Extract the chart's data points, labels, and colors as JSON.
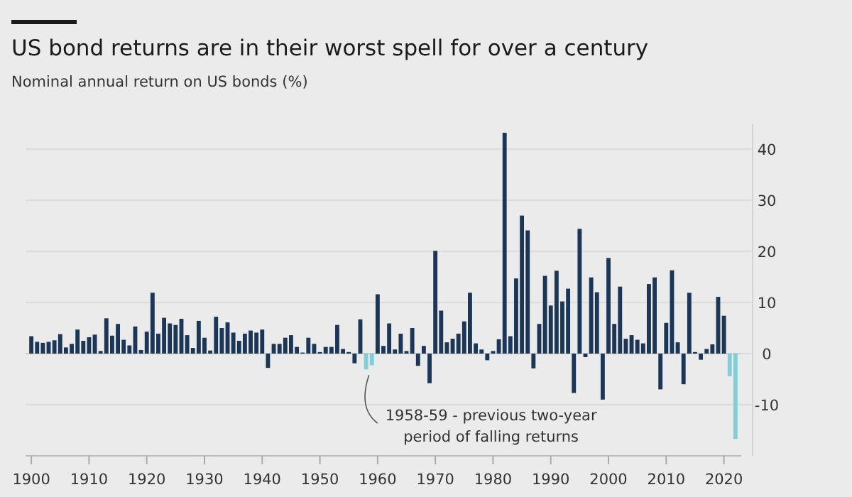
{
  "chart_data": {
    "type": "bar",
    "title": "US bond returns are in their worst spell for over a century",
    "subtitle": "Nominal annual return on US bonds (%)",
    "x": [
      1900,
      1901,
      1902,
      1903,
      1904,
      1905,
      1906,
      1907,
      1908,
      1909,
      1910,
      1911,
      1912,
      1913,
      1914,
      1915,
      1916,
      1917,
      1918,
      1919,
      1920,
      1921,
      1922,
      1923,
      1924,
      1925,
      1926,
      1927,
      1928,
      1929,
      1930,
      1931,
      1932,
      1933,
      1934,
      1935,
      1936,
      1937,
      1938,
      1939,
      1940,
      1941,
      1942,
      1943,
      1944,
      1945,
      1946,
      1947,
      1948,
      1949,
      1950,
      1951,
      1952,
      1953,
      1954,
      1955,
      1956,
      1957,
      1958,
      1959,
      1960,
      1961,
      1962,
      1963,
      1964,
      1965,
      1966,
      1967,
      1968,
      1969,
      1970,
      1971,
      1972,
      1973,
      1974,
      1975,
      1976,
      1977,
      1978,
      1979,
      1980,
      1981,
      1982,
      1983,
      1984,
      1985,
      1986,
      1987,
      1988,
      1989,
      1990,
      1991,
      1992,
      1993,
      1994,
      1995,
      1996,
      1997,
      1998,
      1999,
      2000,
      2001,
      2002,
      2003,
      2004,
      2005,
      2006,
      2007,
      2008,
      2009,
      2010,
      2011,
      2012,
      2013,
      2014,
      2015,
      2016,
      2017,
      2018,
      2019,
      2020,
      2021,
      2022
    ],
    "values": [
      3.4,
      2.3,
      2.1,
      2.3,
      2.6,
      3.8,
      1.2,
      1.9,
      4.7,
      2.5,
      3.2,
      3.7,
      0.5,
      6.9,
      3.5,
      5.8,
      2.7,
      1.6,
      5.3,
      0.7,
      4.3,
      11.9,
      3.9,
      7.0,
      5.9,
      5.6,
      6.8,
      3.6,
      1.1,
      6.4,
      3.1,
      0.6,
      7.2,
      5.0,
      6.1,
      4.1,
      2.5,
      3.9,
      4.5,
      4.1,
      4.7,
      -2.8,
      1.9,
      1.9,
      3.1,
      3.6,
      1.3,
      0.2,
      3.1,
      1.9,
      0.3,
      1.3,
      1.3,
      5.6,
      0.9,
      0.3,
      -1.9,
      6.7,
      -3.1,
      -2.3,
      11.6,
      1.5,
      5.9,
      0.8,
      3.9,
      0.5,
      5.0,
      -2.4,
      1.5,
      -5.8,
      20.1,
      8.4,
      2.2,
      2.9,
      3.9,
      6.3,
      11.9,
      2.0,
      0.8,
      -1.3,
      0.5,
      2.8,
      43.2,
      3.4,
      14.7,
      27.0,
      24.1,
      -2.9,
      5.8,
      15.2,
      9.4,
      16.2,
      10.2,
      12.7,
      -7.7,
      24.4,
      -0.7,
      14.9,
      12.0,
      -9.0,
      18.7,
      5.8,
      13.1,
      2.9,
      3.6,
      2.7,
      2.0,
      13.6,
      14.9,
      -7.0,
      6.0,
      16.3,
      2.2,
      -6.0,
      11.9,
      0.3,
      -1.2,
      0.9,
      1.8,
      11.1,
      7.4,
      -4.4,
      -16.7
    ],
    "colors": [
      "#1b3656",
      "#1b3656",
      "#1b3656",
      "#1b3656",
      "#1b3656",
      "#1b3656",
      "#1b3656",
      "#1b3656",
      "#1b3656",
      "#1b3656",
      "#1b3656",
      "#1b3656",
      "#1b3656",
      "#1b3656",
      "#1b3656",
      "#1b3656",
      "#1b3656",
      "#1b3656",
      "#1b3656",
      "#1b3656",
      "#1b3656",
      "#1b3656",
      "#1b3656",
      "#1b3656",
      "#1b3656",
      "#1b3656",
      "#1b3656",
      "#1b3656",
      "#1b3656",
      "#1b3656",
      "#1b3656",
      "#1b3656",
      "#1b3656",
      "#1b3656",
      "#1b3656",
      "#1b3656",
      "#1b3656",
      "#1b3656",
      "#1b3656",
      "#1b3656",
      "#1b3656",
      "#1b3656",
      "#1b3656",
      "#1b3656",
      "#1b3656",
      "#1b3656",
      "#1b3656",
      "#1b3656",
      "#1b3656",
      "#1b3656",
      "#1b3656",
      "#1b3656",
      "#1b3656",
      "#1b3656",
      "#1b3656",
      "#1b3656",
      "#1b3656",
      "#1b3656",
      "#7fcfd9",
      "#7fcfd9",
      "#1b3656",
      "#1b3656",
      "#1b3656",
      "#1b3656",
      "#1b3656",
      "#1b3656",
      "#1b3656",
      "#1b3656",
      "#1b3656",
      "#1b3656",
      "#1b3656",
      "#1b3656",
      "#1b3656",
      "#1b3656",
      "#1b3656",
      "#1b3656",
      "#1b3656",
      "#1b3656",
      "#1b3656",
      "#1b3656",
      "#1b3656",
      "#1b3656",
      "#1b3656",
      "#1b3656",
      "#1b3656",
      "#1b3656",
      "#1b3656",
      "#1b3656",
      "#1b3656",
      "#1b3656",
      "#1b3656",
      "#1b3656",
      "#1b3656",
      "#1b3656",
      "#1b3656",
      "#1b3656",
      "#1b3656",
      "#1b3656",
      "#1b3656",
      "#1b3656",
      "#1b3656",
      "#1b3656",
      "#1b3656",
      "#1b3656",
      "#1b3656",
      "#1b3656",
      "#1b3656",
      "#1b3656",
      "#1b3656",
      "#1b3656",
      "#1b3656",
      "#1b3656",
      "#1b3656",
      "#1b3656",
      "#1b3656",
      "#1b3656",
      "#1b3656",
      "#1b3656",
      "#1b3656",
      "#1b3656",
      "#1b3656",
      "#7fcfd9",
      "#7fcfd9"
    ],
    "xlim": [
      1899,
      2023
    ],
    "xticks": [
      1900,
      1910,
      1920,
      1930,
      1940,
      1950,
      1960,
      1970,
      1980,
      1990,
      2000,
      2010,
      2020
    ],
    "ylim": [
      -20,
      45
    ],
    "yticks": [
      -10,
      0,
      10,
      20,
      30,
      40
    ],
    "grid": "y",
    "annotations": [
      {
        "text": "1958-59 - previous two-year\nperiod of falling returns",
        "x": 1958.5,
        "y": -3.1
      }
    ]
  }
}
